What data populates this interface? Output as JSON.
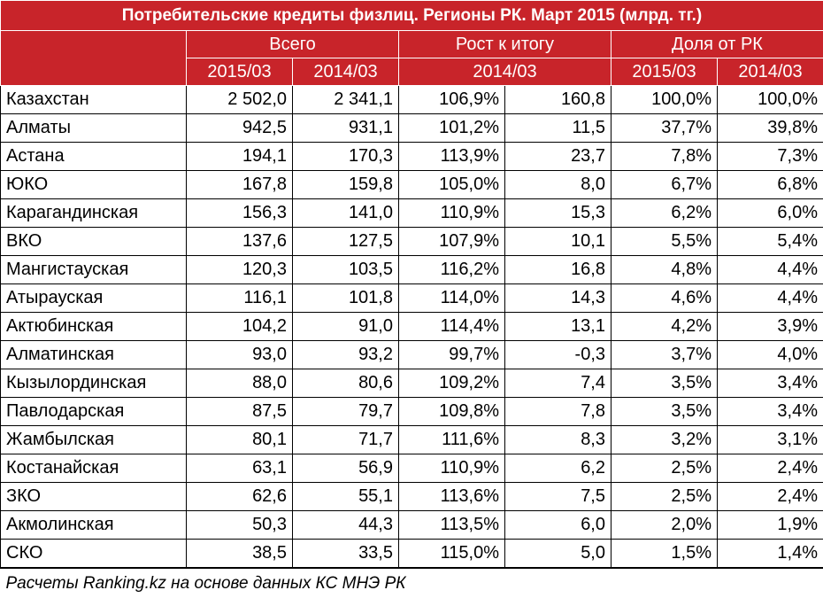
{
  "title": "Потребительские кредиты физлиц. Регионы РК. Март 2015 (млрд. тг.)",
  "headers": {
    "group1": "Всего",
    "group2": "Рост к итогу",
    "group3": "Доля от РК",
    "sub_2015": "2015/03",
    "sub_2014": "2014/03",
    "sub_growth": "2014/03",
    "sub_share_2015": "2015/03",
    "sub_share_2014": "2014/03"
  },
  "rows": [
    {
      "name": "Казахстан",
      "v2015": "2 502,0",
      "v2014": "2 341,1",
      "growth_pct": "106,9%",
      "growth_abs": "160,8",
      "share2015": "100,0%",
      "share2014": "100,0%"
    },
    {
      "name": "Алматы",
      "v2015": "942,5",
      "v2014": "931,1",
      "growth_pct": "101,2%",
      "growth_abs": "11,5",
      "share2015": "37,7%",
      "share2014": "39,8%"
    },
    {
      "name": "Астана",
      "v2015": "194,1",
      "v2014": "170,3",
      "growth_pct": "113,9%",
      "growth_abs": "23,7",
      "share2015": "7,8%",
      "share2014": "7,3%"
    },
    {
      "name": "ЮКО",
      "v2015": "167,8",
      "v2014": "159,8",
      "growth_pct": "105,0%",
      "growth_abs": "8,0",
      "share2015": "6,7%",
      "share2014": "6,8%"
    },
    {
      "name": "Карагандинская",
      "v2015": "156,3",
      "v2014": "141,0",
      "growth_pct": "110,9%",
      "growth_abs": "15,3",
      "share2015": "6,2%",
      "share2014": "6,0%"
    },
    {
      "name": "ВКО",
      "v2015": "137,6",
      "v2014": "127,5",
      "growth_pct": "107,9%",
      "growth_abs": "10,1",
      "share2015": "5,5%",
      "share2014": "5,4%"
    },
    {
      "name": "Мангистауская",
      "v2015": "120,3",
      "v2014": "103,5",
      "growth_pct": "116,2%",
      "growth_abs": "16,8",
      "share2015": "4,8%",
      "share2014": "4,4%"
    },
    {
      "name": "Атырауская",
      "v2015": "116,1",
      "v2014": "101,8",
      "growth_pct": "114,0%",
      "growth_abs": "14,3",
      "share2015": "4,6%",
      "share2014": "4,4%"
    },
    {
      "name": "Актюбинская",
      "v2015": "104,2",
      "v2014": "91,0",
      "growth_pct": "114,4%",
      "growth_abs": "13,1",
      "share2015": "4,2%",
      "share2014": "3,9%"
    },
    {
      "name": "Алматинская",
      "v2015": "93,0",
      "v2014": "93,2",
      "growth_pct": "99,7%",
      "growth_abs": "-0,3",
      "share2015": "3,7%",
      "share2014": "4,0%"
    },
    {
      "name": "Кызылординская",
      "v2015": "88,0",
      "v2014": "80,6",
      "growth_pct": "109,2%",
      "growth_abs": "7,4",
      "share2015": "3,5%",
      "share2014": "3,4%"
    },
    {
      "name": "Павлодарская",
      "v2015": "87,5",
      "v2014": "79,7",
      "growth_pct": "109,8%",
      "growth_abs": "7,8",
      "share2015": "3,5%",
      "share2014": "3,4%"
    },
    {
      "name": "Жамбылская",
      "v2015": "80,1",
      "v2014": "71,7",
      "growth_pct": "111,6%",
      "growth_abs": "8,3",
      "share2015": "3,2%",
      "share2014": "3,1%"
    },
    {
      "name": "Костанайская",
      "v2015": "63,1",
      "v2014": "56,9",
      "growth_pct": "110,9%",
      "growth_abs": "6,2",
      "share2015": "2,5%",
      "share2014": "2,4%"
    },
    {
      "name": "ЗКО",
      "v2015": "62,6",
      "v2014": "55,1",
      "growth_pct": "113,6%",
      "growth_abs": "7,5",
      "share2015": "2,5%",
      "share2014": "2,4%"
    },
    {
      "name": "Акмолинская",
      "v2015": "50,3",
      "v2014": "44,3",
      "growth_pct": "113,5%",
      "growth_abs": "6,0",
      "share2015": "2,0%",
      "share2014": "1,9%"
    },
    {
      "name": "СКО",
      "v2015": "38,5",
      "v2014": "33,5",
      "growth_pct": "115,0%",
      "growth_abs": "5,0",
      "share2015": "1,5%",
      "share2014": "1,4%"
    }
  ],
  "footer": "Расчеты Ranking.kz на основе данных КС МНЭ РК",
  "colors": {
    "header_bg": "#c8242a",
    "header_text": "#ffffff",
    "grid": "#000000"
  }
}
